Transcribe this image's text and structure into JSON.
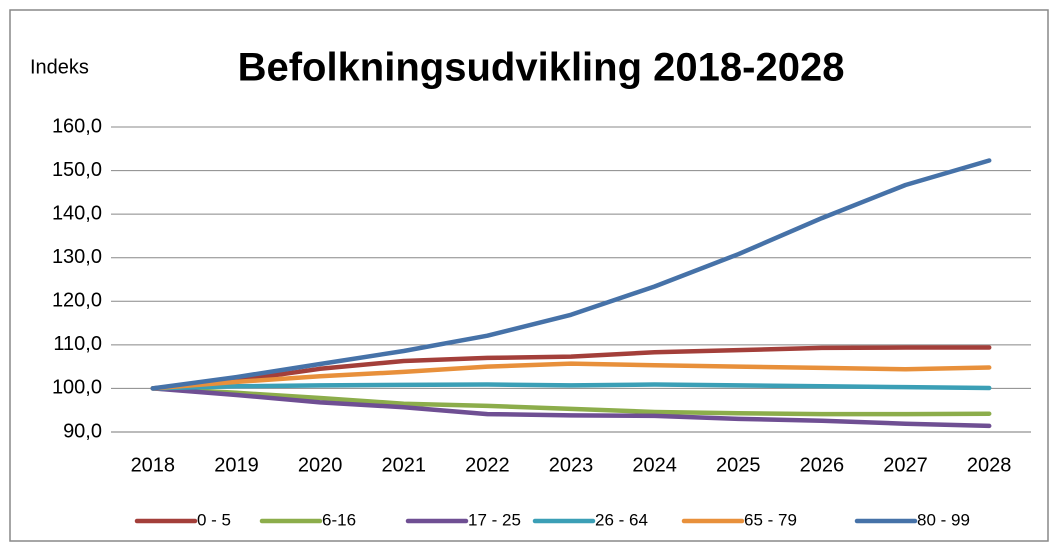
{
  "chart_data": {
    "type": "line",
    "title": "Befolkningsudvikling 2018-2028",
    "y_label": "Indeks",
    "categories": [
      "2018",
      "2019",
      "2020",
      "2021",
      "2022",
      "2023",
      "2024",
      "2025",
      "2026",
      "2027",
      "2028"
    ],
    "series": [
      {
        "name": "0 - 5",
        "color": "#a33f3a",
        "values": [
          100,
          101.8,
          104.5,
          106.3,
          107.0,
          107.3,
          108.3,
          108.8,
          109.3,
          109.4,
          109.4
        ]
      },
      {
        "name": "6-16",
        "color": "#8cad4b",
        "values": [
          100,
          99.0,
          97.8,
          96.5,
          96.0,
          95.3,
          94.6,
          94.3,
          94.1,
          94.1,
          94.2
        ]
      },
      {
        "name": "17 - 25",
        "color": "#6f4f93",
        "values": [
          100,
          98.5,
          96.8,
          95.7,
          94.1,
          93.8,
          93.7,
          93.0,
          92.6,
          91.9,
          91.4
        ]
      },
      {
        "name": "26 - 64",
        "color": "#3b9fb6",
        "values": [
          100,
          100.5,
          100.7,
          100.8,
          100.9,
          100.7,
          100.9,
          100.7,
          100.5,
          100.3,
          100.1
        ]
      },
      {
        "name": "65 - 79",
        "color": "#e8903b",
        "values": [
          100,
          101.5,
          102.8,
          103.8,
          105.0,
          105.7,
          105.3,
          105.0,
          104.7,
          104.4,
          104.8
        ]
      },
      {
        "name": "80 - 99",
        "color": "#4672a8",
        "values": [
          100,
          102.6,
          105.6,
          108.6,
          112.1,
          116.9,
          123.4,
          130.8,
          139.1,
          146.7,
          152.3
        ]
      }
    ],
    "ylim": [
      90,
      160
    ],
    "yticks": [
      {
        "value": 90,
        "label": "90,0"
      },
      {
        "value": 100,
        "label": "100,0"
      },
      {
        "value": 110,
        "label": "110,0"
      },
      {
        "value": 120,
        "label": "120,0"
      },
      {
        "value": 130,
        "label": "130,0"
      },
      {
        "value": 140,
        "label": "140,0"
      },
      {
        "value": 150,
        "label": "150,0"
      },
      {
        "value": 160,
        "label": "160,0"
      }
    ],
    "grid": true,
    "legend": "bottom"
  }
}
